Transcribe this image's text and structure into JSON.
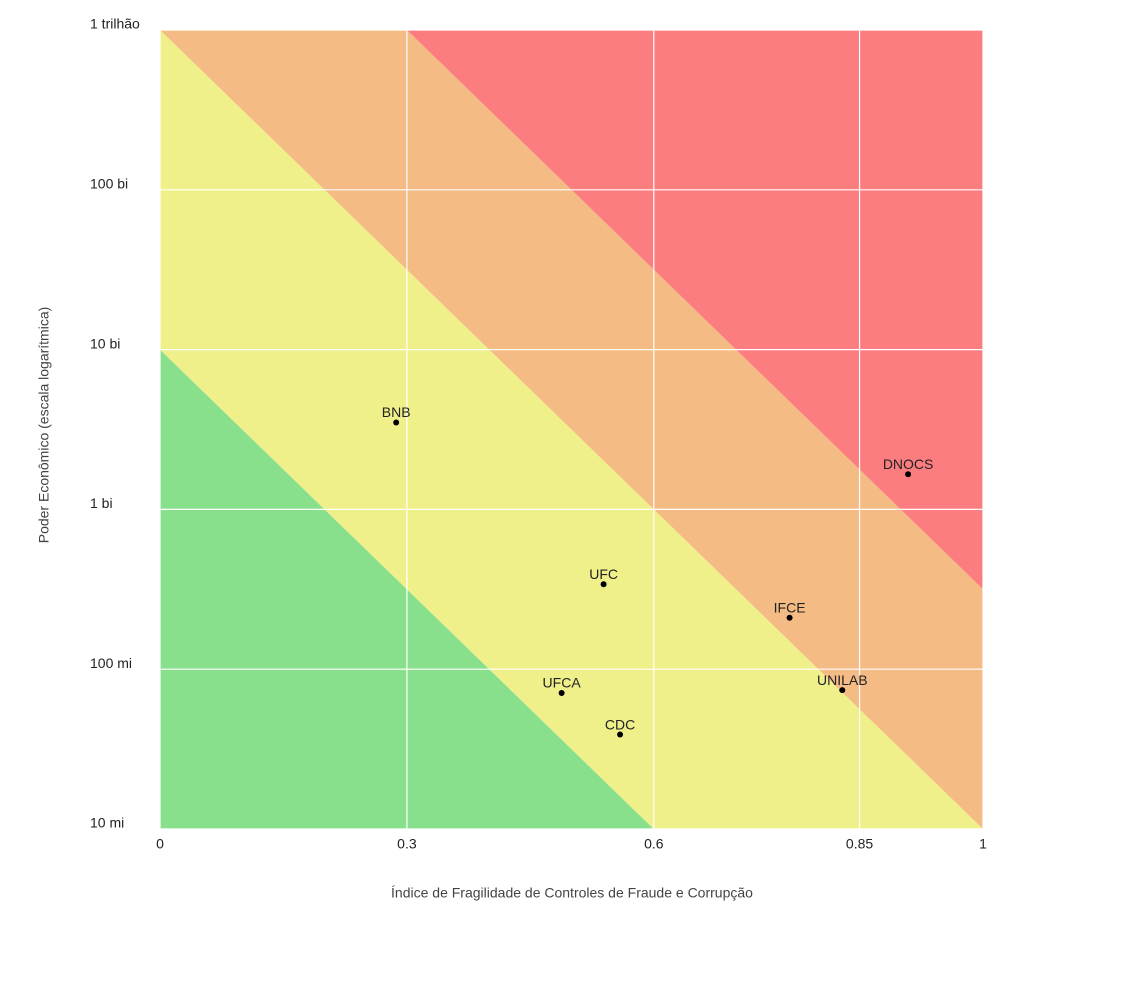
{
  "chart_data": {
    "type": "scatter",
    "x_label": "Índice de Fragilidade de Controles de Fraude e Corrupção",
    "y_label": "Poder Econômico (escala logarítmica)",
    "xlim": [
      0,
      1
    ],
    "ylim": [
      10000000,
      1000000000000
    ],
    "y_log": true,
    "grid": true,
    "xticks": [
      0,
      0.3,
      0.6,
      0.85,
      1
    ],
    "yticks": [
      {
        "value": 10000000,
        "label": "10 mi"
      },
      {
        "value": 100000000,
        "label": "100 mi"
      },
      {
        "value": 1000000000,
        "label": "1 bi"
      },
      {
        "value": 10000000000,
        "label": "10 bi"
      },
      {
        "value": 100000000000,
        "label": "100 bi"
      },
      {
        "value": 1000000000000,
        "label": "1 trilhão"
      }
    ],
    "regions": [
      {
        "color": "#88e08c",
        "x": [
          0,
          0,
          0.6
        ],
        "y": [
          10000000,
          10000000000,
          10000000
        ]
      },
      {
        "color": "#f0f08a",
        "x": [
          0,
          0,
          1,
          0.6
        ],
        "y": [
          10000000000,
          1000000000000,
          10000000,
          10000000
        ]
      },
      {
        "color": "#f5bb85",
        "x": [
          0,
          0.3,
          1,
          1
        ],
        "y": [
          1000000000000,
          1000000000000,
          316227766,
          10000000
        ]
      },
      {
        "color": "#fb7d7f",
        "x": [
          0.3,
          1,
          1
        ],
        "y": [
          1000000000000,
          1000000000000,
          316227766
        ]
      }
    ],
    "point_color": "#000000",
    "labels": [
      "BNB",
      "UFC",
      "IFCE",
      "UNILAB",
      "UFCA",
      "CDC",
      "DNOCS"
    ],
    "x": [
      0.287,
      0.539,
      0.765,
      0.829,
      0.488,
      0.559,
      0.909
    ],
    "values": [
      3500000000,
      340000000,
      210000000,
      74000000,
      71000000,
      39000000,
      1660000000
    ]
  }
}
